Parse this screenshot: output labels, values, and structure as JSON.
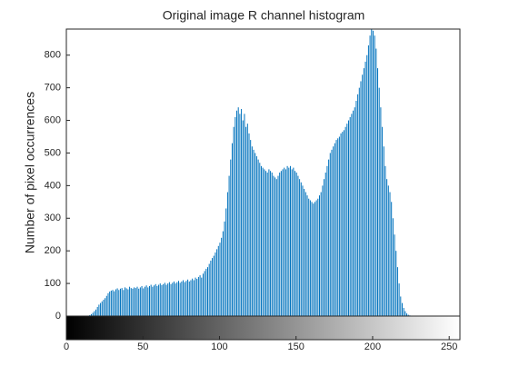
{
  "chart_data": {
    "type": "histogram",
    "title": "Original image R channel histogram",
    "ylabel": "Number of pixel occurrences",
    "color": "#0072bd",
    "bins": [
      0,
      1,
      2,
      3,
      4,
      5,
      6,
      7,
      8,
      9,
      10,
      11,
      12,
      13,
      14,
      15,
      16,
      17,
      18,
      19,
      20,
      21,
      22,
      23,
      24,
      25,
      26,
      27,
      28,
      29,
      30,
      31,
      32,
      33,
      34,
      35,
      36,
      37,
      38,
      39,
      40,
      41,
      42,
      43,
      44,
      45,
      46,
      47,
      48,
      49,
      50,
      51,
      52,
      53,
      54,
      55,
      56,
      57,
      58,
      59,
      60,
      61,
      62,
      63,
      64,
      65,
      66,
      67,
      68,
      69,
      70,
      71,
      72,
      73,
      74,
      75,
      76,
      77,
      78,
      79,
      80,
      81,
      82,
      83,
      84,
      85,
      86,
      87,
      88,
      89,
      90,
      91,
      92,
      93,
      94,
      95,
      96,
      97,
      98,
      99,
      100,
      101,
      102,
      103,
      104,
      105,
      106,
      107,
      108,
      109,
      110,
      111,
      112,
      113,
      114,
      115,
      116,
      117,
      118,
      119,
      120,
      121,
      122,
      123,
      124,
      125,
      126,
      127,
      128,
      129,
      130,
      131,
      132,
      133,
      134,
      135,
      136,
      137,
      138,
      139,
      140,
      141,
      142,
      143,
      144,
      145,
      146,
      147,
      148,
      149,
      150,
      151,
      152,
      153,
      154,
      155,
      156,
      157,
      158,
      159,
      160,
      161,
      162,
      163,
      164,
      165,
      166,
      167,
      168,
      169,
      170,
      171,
      172,
      173,
      174,
      175,
      176,
      177,
      178,
      179,
      180,
      181,
      182,
      183,
      184,
      185,
      186,
      187,
      188,
      189,
      190,
      191,
      192,
      193,
      194,
      195,
      196,
      197,
      198,
      199,
      200,
      201,
      202,
      203,
      204,
      205,
      206,
      207,
      208,
      209,
      210,
      211,
      212,
      213,
      214,
      215,
      216,
      217,
      218,
      219,
      220,
      221,
      222,
      223,
      224,
      225,
      226,
      227,
      228,
      229,
      230,
      231,
      232,
      233,
      234,
      235,
      236,
      237,
      238,
      239,
      240,
      241,
      242,
      243,
      244,
      245,
      246,
      247,
      248,
      249,
      250,
      251,
      252,
      253,
      254,
      255,
      256
    ],
    "counts": [
      0,
      0,
      0,
      0,
      0,
      0,
      0,
      0,
      0,
      0,
      0,
      0,
      0,
      0,
      0,
      3,
      6,
      10,
      15,
      20,
      28,
      35,
      40,
      45,
      50,
      55,
      62,
      70,
      75,
      78,
      80,
      76,
      82,
      85,
      80,
      84,
      86,
      80,
      88,
      85,
      82,
      90,
      86,
      84,
      88,
      86,
      90,
      84,
      88,
      92,
      85,
      90,
      94,
      88,
      92,
      96,
      90,
      94,
      98,
      92,
      96,
      100,
      95,
      98,
      102,
      96,
      100,
      104,
      98,
      102,
      106,
      100,
      104,
      108,
      102,
      106,
      110,
      104,
      108,
      112,
      106,
      110,
      115,
      110,
      118,
      114,
      120,
      125,
      118,
      130,
      138,
      145,
      150,
      160,
      170,
      178,
      185,
      195,
      205,
      215,
      225,
      240,
      260,
      290,
      330,
      380,
      430,
      480,
      530,
      580,
      610,
      630,
      640,
      620,
      635,
      600,
      620,
      580,
      590,
      560,
      540,
      520,
      510,
      500,
      490,
      480,
      470,
      460,
      455,
      450,
      445,
      440,
      450,
      445,
      440,
      430,
      425,
      420,
      430,
      440,
      445,
      450,
      455,
      450,
      460,
      455,
      460,
      450,
      455,
      445,
      440,
      430,
      420,
      410,
      400,
      390,
      380,
      370,
      360,
      355,
      350,
      345,
      350,
      355,
      360,
      370,
      380,
      400,
      420,
      440,
      460,
      480,
      500,
      510,
      520,
      530,
      540,
      545,
      550,
      560,
      565,
      570,
      580,
      590,
      600,
      610,
      620,
      630,
      640,
      660,
      680,
      700,
      720,
      740,
      760,
      780,
      800,
      830,
      860,
      880,
      875,
      860,
      820,
      760,
      700,
      640,
      580,
      520,
      460,
      420,
      400,
      380,
      350,
      300,
      250,
      200,
      150,
      100,
      60,
      40,
      25,
      15,
      8,
      4,
      2,
      0,
      0,
      0,
      0,
      0,
      0,
      0,
      0,
      0,
      0,
      0,
      0,
      0,
      0,
      0,
      0,
      0,
      0,
      0,
      0,
      0,
      0,
      0,
      0,
      0,
      0,
      0,
      0,
      0,
      0,
      0
    ],
    "xlim": [
      0,
      257
    ],
    "ylim": [
      0,
      880
    ],
    "xticks": [
      0,
      50,
      100,
      150,
      200,
      250
    ],
    "yticks": [
      0,
      100,
      200,
      300,
      400,
      500,
      600,
      700,
      800
    ]
  }
}
